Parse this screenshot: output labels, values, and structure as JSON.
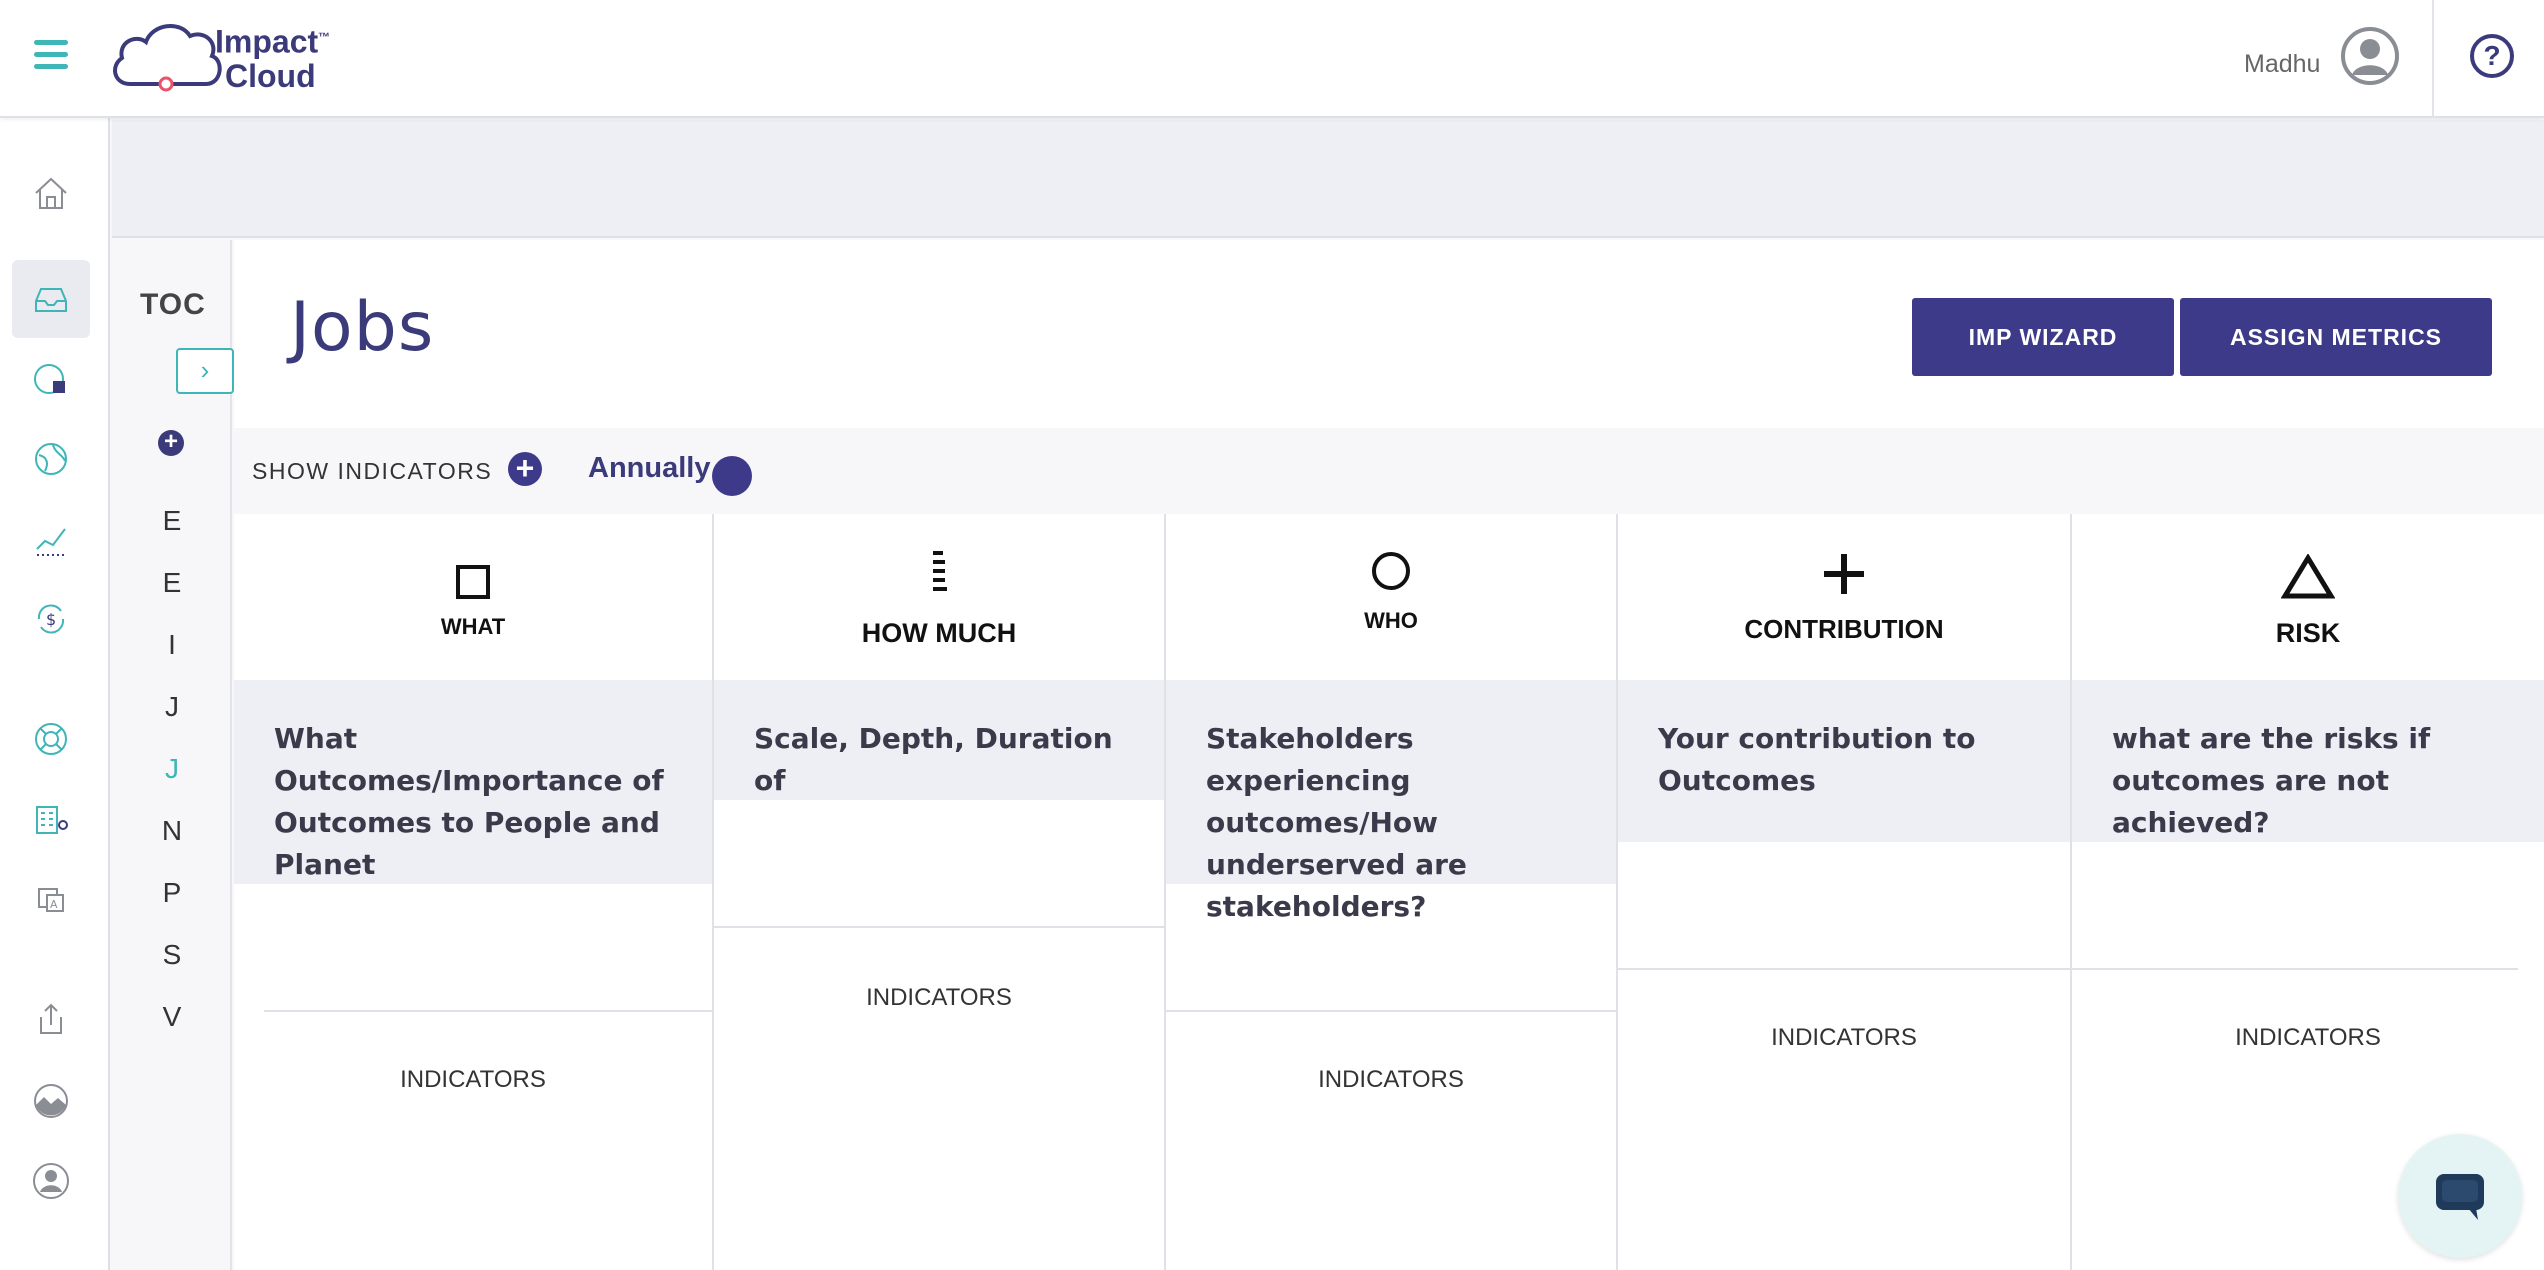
{
  "header": {
    "logo_line1": "Impact",
    "logo_line2": "Cloud",
    "logo_tm": "™",
    "user_name": "Madhu",
    "help_label": "?"
  },
  "sidebar": {
    "icons": [
      "home-icon",
      "inbox-icon",
      "report-icon",
      "globe-icon",
      "chart-icon",
      "exchange-icon",
      "lifebuoy-icon",
      "building-icon",
      "translate-icon",
      "export-icon",
      "landscape-icon",
      "user-icon"
    ],
    "active": "inbox-icon"
  },
  "toc": {
    "title": "TOC",
    "toggle": "›",
    "add": "+",
    "letters": [
      "E",
      "E",
      "I",
      "J",
      "J",
      "N",
      "P",
      "S",
      "V"
    ],
    "active_index": 4
  },
  "main": {
    "title": "Jobs",
    "buttons": {
      "imp_wizard": "IMP WIZARD",
      "assign_metrics": "ASSIGN METRICS"
    },
    "show_indicators": "SHOW INDICATORS",
    "show_indicators_plus": "+",
    "frequency": "Annually",
    "columns": [
      {
        "label": "WHAT",
        "question": "What Outcomes/Importance of Outcomes to People and Planet",
        "indicators": "INDICATORS",
        "icon": "square-icon"
      },
      {
        "label": "HOW MUCH",
        "question": "Scale, Depth, Duration of",
        "indicators": "INDICATORS",
        "icon": "scale-bars-icon"
      },
      {
        "label": "WHO",
        "question": "Stakeholders experiencing outcomes/How underserved are stakeholders?",
        "indicators": "INDICATORS",
        "icon": "circle-icon"
      },
      {
        "label": "CONTRIBUTION",
        "question": "Your contribution to Outcomes",
        "indicators": "INDICATORS",
        "icon": "plus-icon"
      },
      {
        "label": "RISK",
        "question": "what are the risks if outcomes are not achieved?",
        "indicators": "INDICATORS",
        "icon": "triangle-icon"
      }
    ]
  },
  "colors": {
    "brand": "#3b3a7a",
    "accent": "#3fb5b8",
    "button": "#3e3a8a"
  }
}
